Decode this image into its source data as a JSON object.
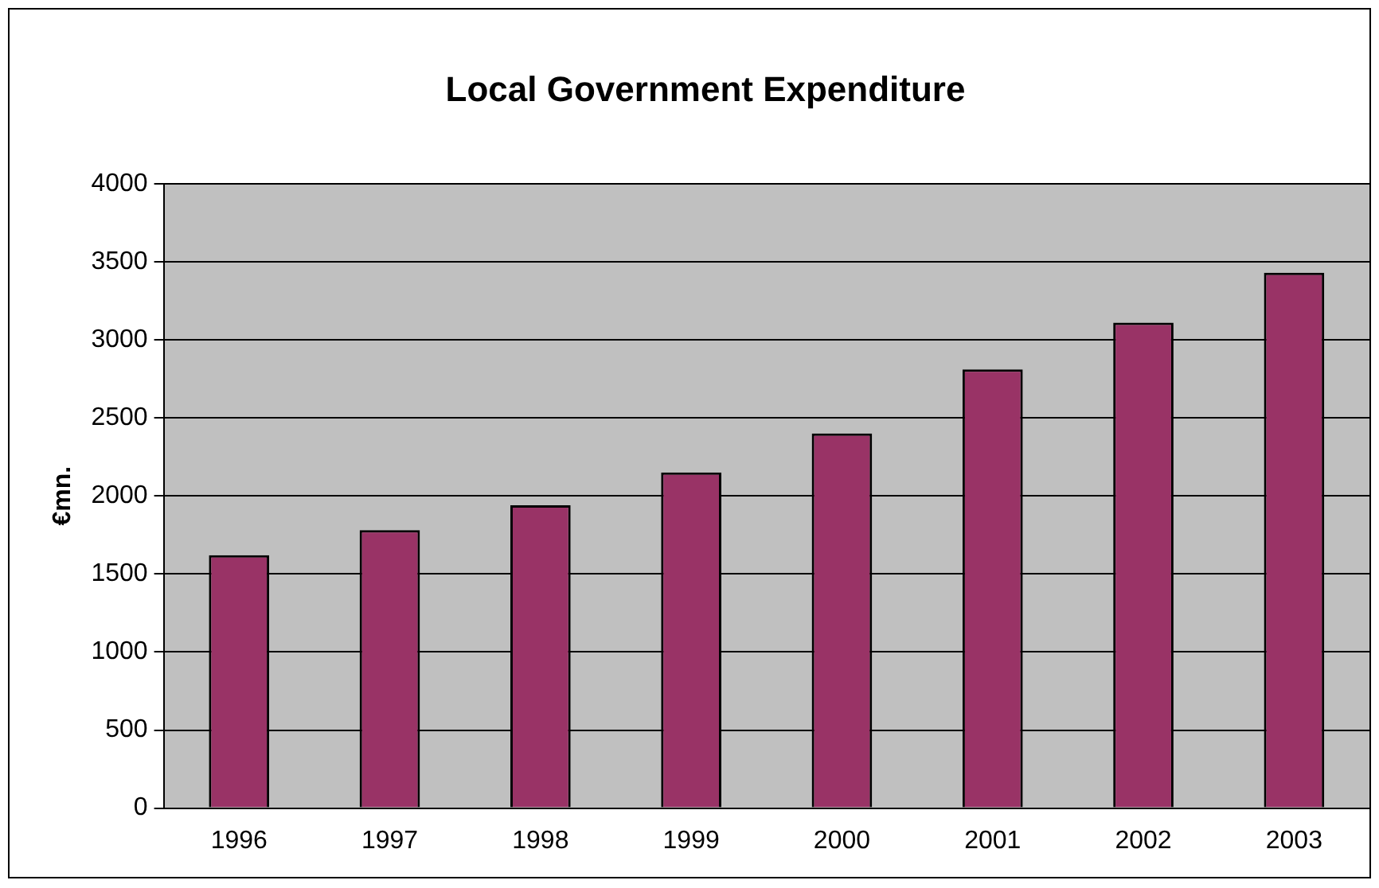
{
  "chart_data": {
    "type": "bar",
    "title": "Local Government Expenditure",
    "ylabel": "€mn.",
    "categories": [
      "1996",
      "1997",
      "1998",
      "1999",
      "2000",
      "2001",
      "2002",
      "2003"
    ],
    "values": [
      1620,
      1780,
      1940,
      2150,
      2400,
      2810,
      3110,
      3430
    ],
    "color": "#993366",
    "ylim": [
      0,
      4000
    ],
    "yticks": [
      0,
      500,
      1000,
      1500,
      2000,
      2500,
      3000,
      3500,
      4000
    ],
    "grid": "y",
    "legend": false
  }
}
